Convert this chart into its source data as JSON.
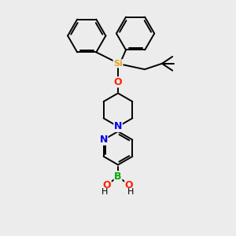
{
  "background_color": "#ececec",
  "atom_colors": {
    "C": "#000000",
    "N": "#0000ee",
    "O": "#ff2200",
    "B": "#00aa00",
    "Si": "#daa520",
    "H": "#000000"
  },
  "bond_color": "#000000",
  "figsize": [
    3.0,
    3.0
  ],
  "dpi": 100,
  "xlim": [
    0,
    10
  ],
  "ylim": [
    0,
    10
  ]
}
